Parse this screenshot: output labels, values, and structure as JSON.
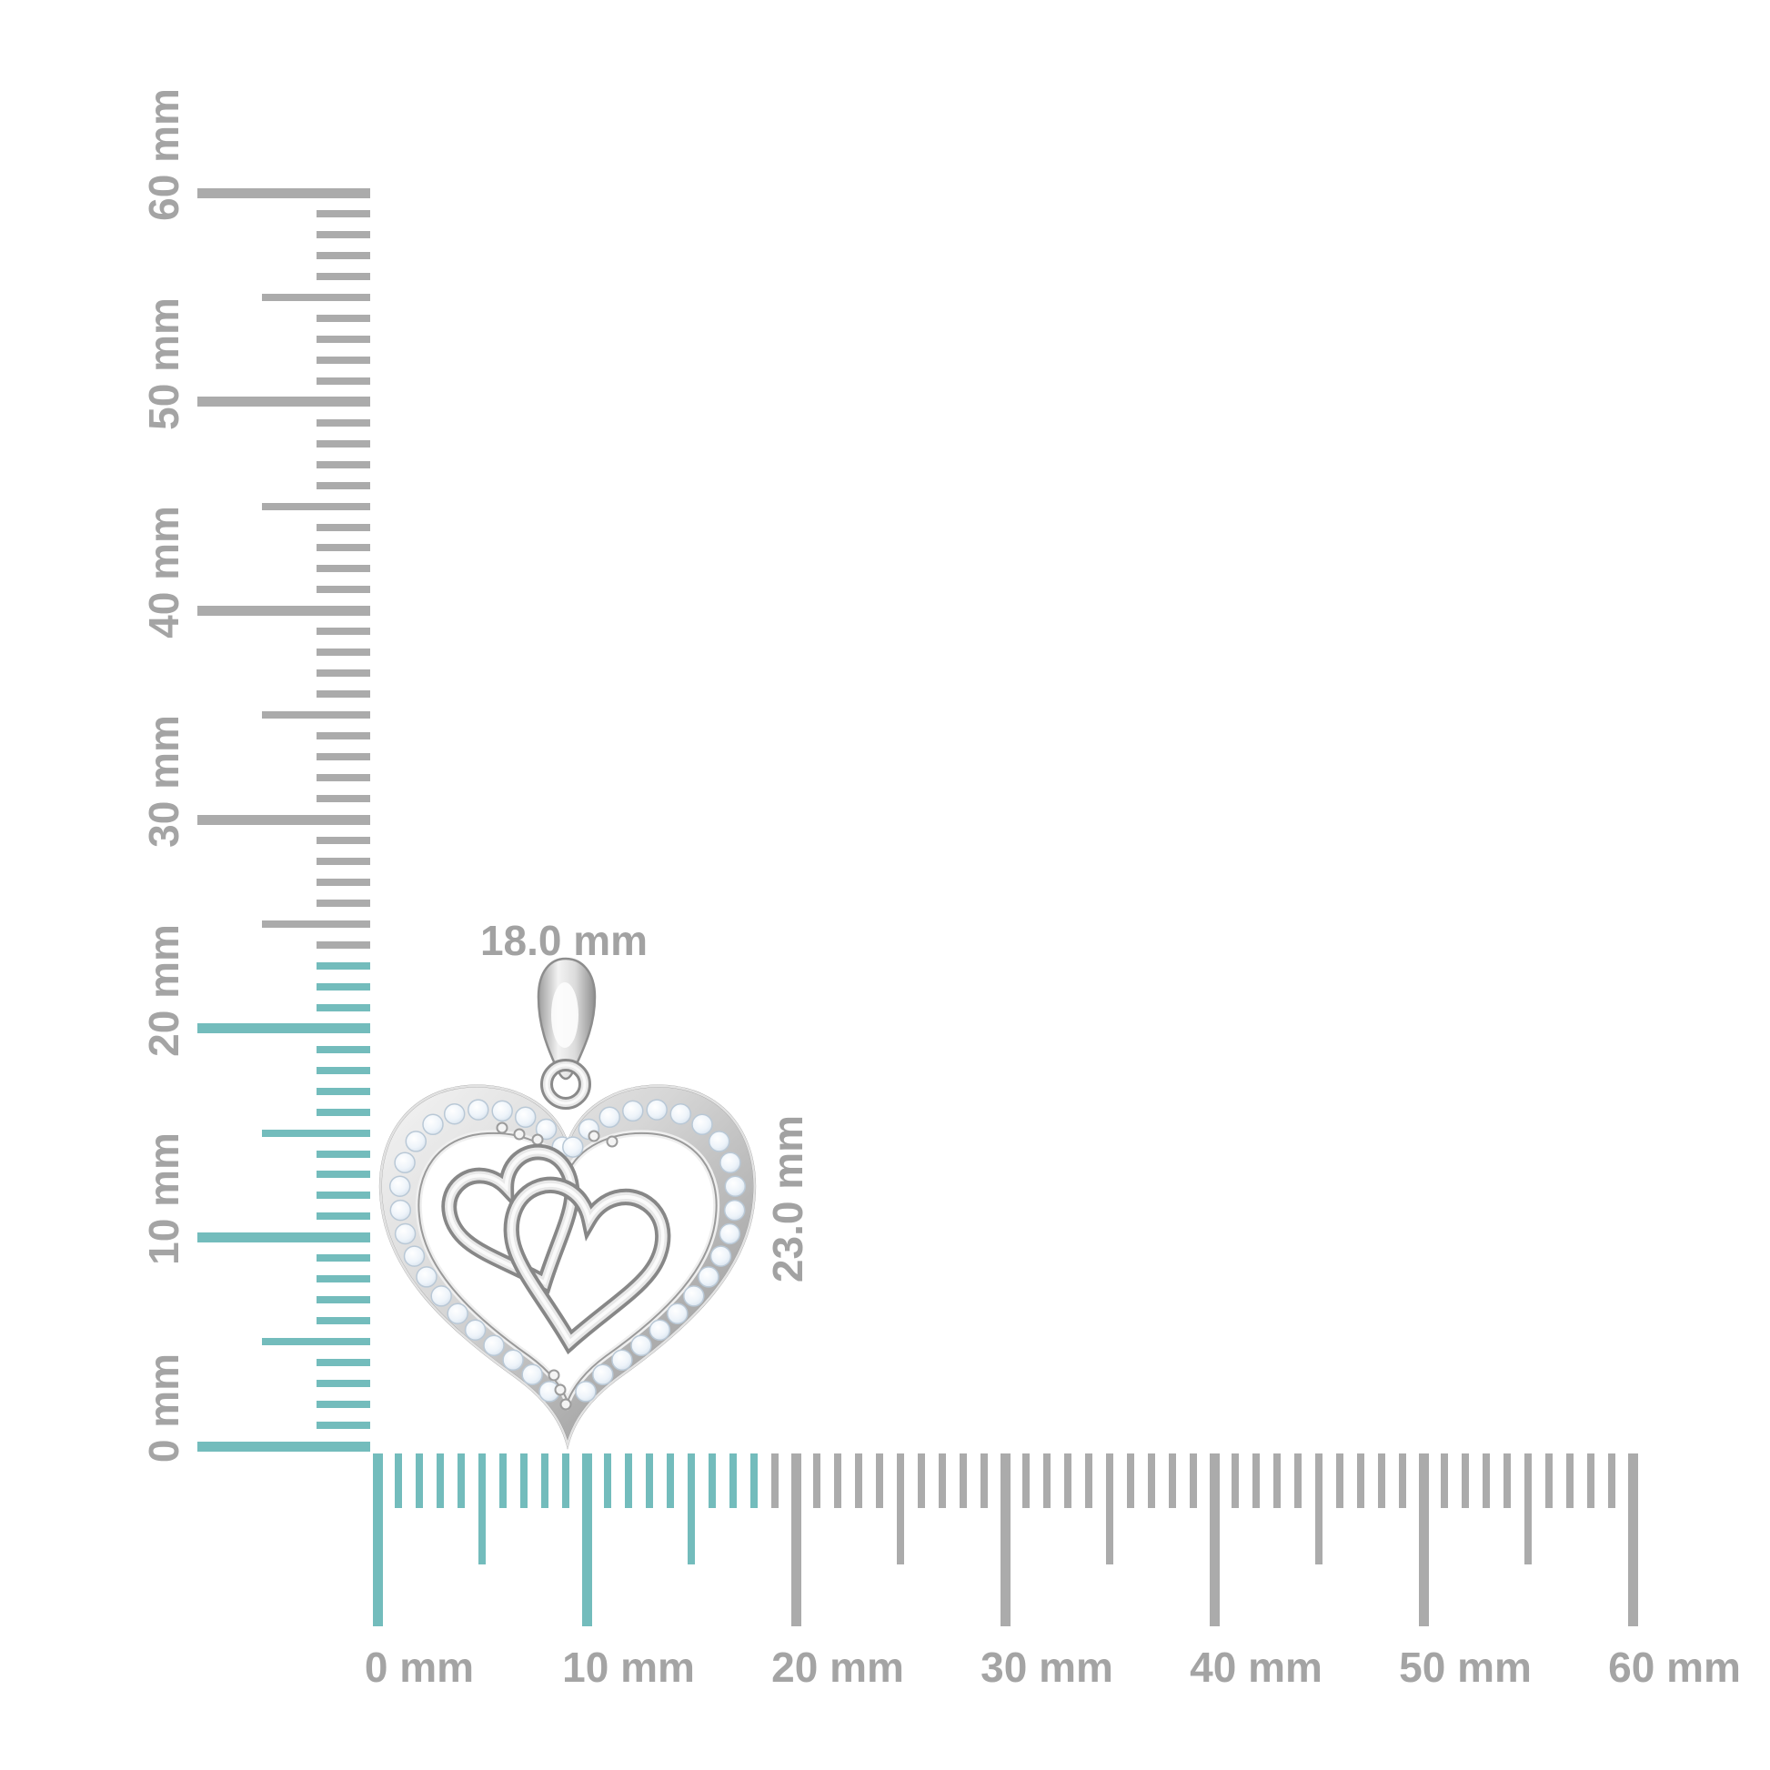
{
  "page": {
    "background": "#ffffff"
  },
  "rulers": {
    "units": "mm",
    "tick_color_default": "#ababab",
    "tick_color_highlight": "#73bcbc",
    "label_color": "#a4a4a4",
    "vertical": {
      "min_mm": 0,
      "max_mm": 60,
      "step_labeled_mm": 10,
      "highlight_max_mm": 23,
      "labels": [
        "0 mm",
        "10 mm",
        "20 mm",
        "30 mm",
        "40 mm",
        "50 mm",
        "60 mm"
      ]
    },
    "horizontal": {
      "min_mm": 0,
      "max_mm": 60,
      "step_labeled_mm": 10,
      "highlight_max_mm": 18,
      "labels": [
        "0 mm",
        "10 mm",
        "20 mm",
        "30 mm",
        "40 mm",
        "50 mm",
        "60 mm"
      ]
    }
  },
  "annotations": {
    "width_label": "18.0 mm",
    "height_label": "23.0 mm"
  },
  "pendant": {
    "description": "silver double-heart diamond pendant with pave-set round stones and two interlocked polished hearts inside a diamond heart frame with bail",
    "metal_color": "#c6c6c6",
    "diamond_color": "#e9f1f8",
    "width_mm": 18.0,
    "height_mm": 23.0
  }
}
